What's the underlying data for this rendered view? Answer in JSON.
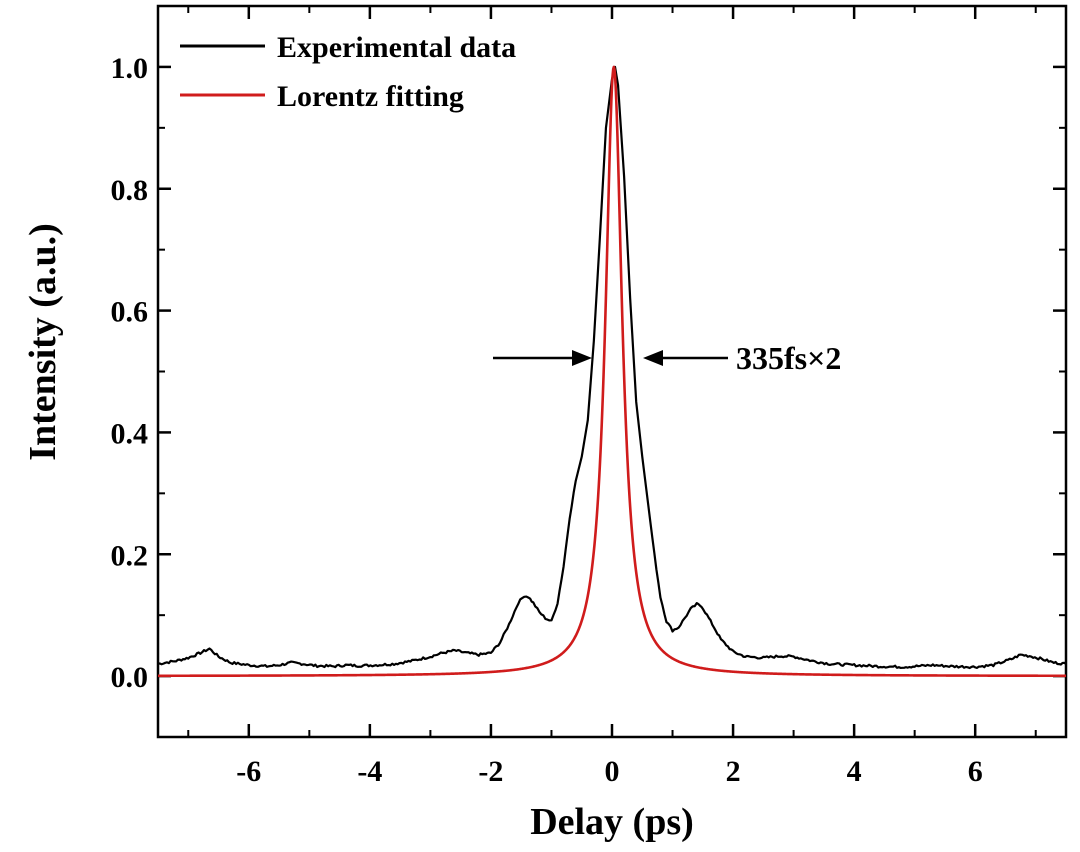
{
  "chart_data": {
    "type": "line",
    "title": "",
    "xlabel": "Delay (ps)",
    "ylabel": "Intensity (a.u.)",
    "xlim": [
      -7.5,
      7.5
    ],
    "ylim": [
      -0.1,
      1.1
    ],
    "xticks": [
      -6,
      -4,
      -2,
      0,
      2,
      4,
      6
    ],
    "xtick_labels": [
      "-6",
      "-4",
      "-2",
      "0",
      "2",
      "4",
      "6"
    ],
    "yticks": [
      0.0,
      0.2,
      0.4,
      0.6,
      0.8,
      1.0
    ],
    "ytick_labels": [
      "0.0",
      "0.2",
      "0.4",
      "0.6",
      "0.8",
      "1.0"
    ],
    "grid": false,
    "legend_position": "top-left",
    "series": [
      {
        "name": "Experimental data",
        "color": "#000000",
        "x": [
          -7.5,
          -7.2,
          -7.0,
          -6.8,
          -6.65,
          -6.5,
          -6.3,
          -6.0,
          -5.7,
          -5.5,
          -5.3,
          -5.1,
          -4.9,
          -4.6,
          -4.4,
          -4.2,
          -3.9,
          -3.6,
          -3.3,
          -3.0,
          -2.8,
          -2.6,
          -2.4,
          -2.2,
          -2.0,
          -1.85,
          -1.7,
          -1.55,
          -1.45,
          -1.38,
          -1.3,
          -1.2,
          -1.1,
          -1.0,
          -0.9,
          -0.8,
          -0.7,
          -0.6,
          -0.5,
          -0.4,
          -0.3,
          -0.2,
          -0.1,
          0.0,
          0.05,
          0.1,
          0.2,
          0.3,
          0.4,
          0.5,
          0.6,
          0.7,
          0.8,
          0.9,
          1.0,
          1.1,
          1.2,
          1.3,
          1.4,
          1.48,
          1.6,
          1.8,
          2.0,
          2.2,
          2.5,
          2.8,
          3.0,
          3.3,
          3.6,
          4.0,
          4.4,
          4.8,
          5.0,
          5.3,
          5.6,
          6.0,
          6.3,
          6.6,
          6.75,
          6.9,
          7.1,
          7.3,
          7.5
        ],
        "y": [
          0.02,
          0.025,
          0.03,
          0.038,
          0.045,
          0.032,
          0.022,
          0.018,
          0.016,
          0.018,
          0.022,
          0.02,
          0.017,
          0.016,
          0.018,
          0.017,
          0.018,
          0.02,
          0.025,
          0.032,
          0.038,
          0.042,
          0.038,
          0.035,
          0.038,
          0.055,
          0.085,
          0.12,
          0.132,
          0.13,
          0.12,
          0.105,
          0.095,
          0.09,
          0.12,
          0.18,
          0.26,
          0.32,
          0.36,
          0.42,
          0.55,
          0.72,
          0.9,
          0.98,
          1.0,
          0.97,
          0.82,
          0.62,
          0.45,
          0.36,
          0.28,
          0.2,
          0.13,
          0.09,
          0.075,
          0.08,
          0.095,
          0.11,
          0.118,
          0.115,
          0.095,
          0.06,
          0.04,
          0.032,
          0.03,
          0.033,
          0.032,
          0.025,
          0.02,
          0.018,
          0.016,
          0.015,
          0.016,
          0.018,
          0.016,
          0.015,
          0.018,
          0.028,
          0.035,
          0.033,
          0.028,
          0.022,
          0.02
        ]
      },
      {
        "name": "Lorentz fitting",
        "color": "#d01c1c",
        "model": "lorentzian",
        "center": 0.03,
        "fwhm": 0.335,
        "amplitude": 1.0
      }
    ],
    "annotations": [
      {
        "text": "335fs×2",
        "x": 1.95,
        "y": 0.525
      }
    ]
  }
}
